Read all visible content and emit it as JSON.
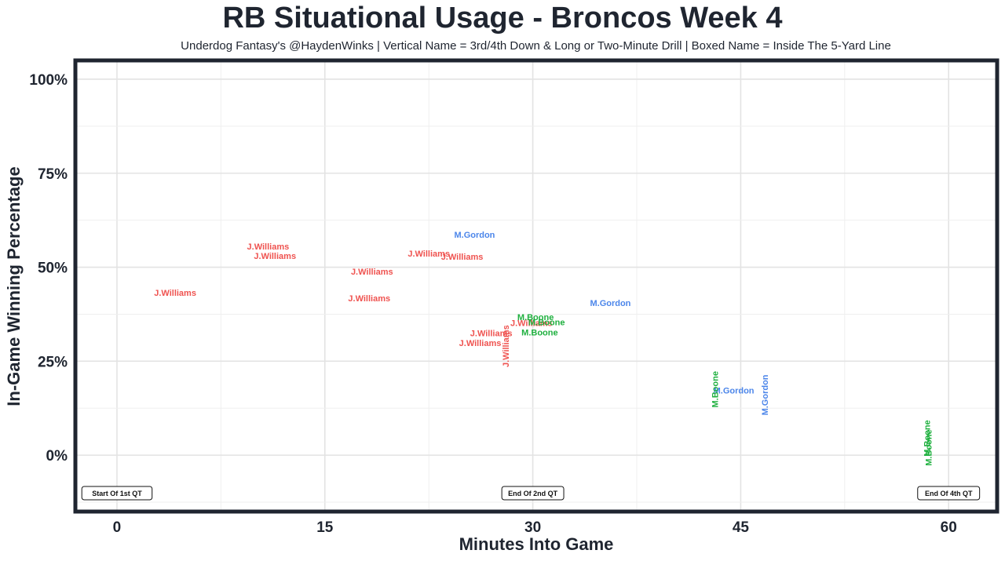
{
  "chart_data": {
    "type": "scatter",
    "title": "RB Situational Usage - Broncos Week 4",
    "subtitle": "Underdog Fantasy's @HaydenWinks | Vertical Name = 3rd/4th Down & Long or Two-Minute Drill | Boxed Name = Inside The 5-Yard Line",
    "xlabel": "Minutes Into Game",
    "ylabel": "In-Game Winning Percentage",
    "xlim": [
      -3,
      63.5
    ],
    "ylim": [
      -0.15,
      1.05
    ],
    "x_ticks": [
      0,
      15,
      30,
      45,
      60
    ],
    "x_tick_labels": [
      "0",
      "15",
      "30",
      "45",
      "60"
    ],
    "y_ticks": [
      0,
      0.25,
      0.5,
      0.75,
      1.0
    ],
    "y_tick_labels": [
      "0%",
      "25%",
      "50%",
      "75%",
      "100%"
    ],
    "grid": true,
    "colors": {
      "J.Williams": "#ef5350",
      "M.Gordon": "#4c86ea",
      "M.Boone": "#1fb03f"
    },
    "points": [
      {
        "label": "J.Williams",
        "x": 4.2,
        "y": 0.43,
        "vertical": false
      },
      {
        "label": "J.Williams",
        "x": 10.9,
        "y": 0.553,
        "vertical": false
      },
      {
        "label": "J.Williams",
        "x": 11.4,
        "y": 0.528,
        "vertical": false
      },
      {
        "label": "J.Williams",
        "x": 18.4,
        "y": 0.487,
        "vertical": false
      },
      {
        "label": "J.Williams",
        "x": 18.2,
        "y": 0.416,
        "vertical": false
      },
      {
        "label": "J.Williams",
        "x": 22.5,
        "y": 0.535,
        "vertical": false
      },
      {
        "label": "J.Williams",
        "x": 24.9,
        "y": 0.526,
        "vertical": false
      },
      {
        "label": "J.Williams",
        "x": 28.1,
        "y": 0.29,
        "vertical": true
      },
      {
        "label": "J.Williams",
        "x": 27.0,
        "y": 0.323,
        "vertical": false
      },
      {
        "label": "J.Williams",
        "x": 26.2,
        "y": 0.297,
        "vertical": false
      },
      {
        "label": "J.Williams",
        "x": 29.9,
        "y": 0.35,
        "vertical": false
      },
      {
        "label": "M.Gordon",
        "x": 25.8,
        "y": 0.585,
        "vertical": false
      },
      {
        "label": "M.Gordon",
        "x": 35.6,
        "y": 0.403,
        "vertical": false
      },
      {
        "label": "M.Gordon",
        "x": 44.5,
        "y": 0.17,
        "vertical": false
      },
      {
        "label": "M.Gordon",
        "x": 46.8,
        "y": 0.16,
        "vertical": true
      },
      {
        "label": "M.Boone",
        "x": 30.2,
        "y": 0.366,
        "vertical": false
      },
      {
        "label": "M.Boone",
        "x": 31.0,
        "y": 0.352,
        "vertical": false
      },
      {
        "label": "M.Boone",
        "x": 30.5,
        "y": 0.325,
        "vertical": false
      },
      {
        "label": "M.Boone",
        "x": 43.2,
        "y": 0.175,
        "vertical": true
      },
      {
        "label": "M.Boone",
        "x": 58.5,
        "y": 0.045,
        "vertical": true
      },
      {
        "label": "M.Boone",
        "x": 58.6,
        "y": 0.02,
        "vertical": true
      }
    ],
    "quarter_markers": [
      {
        "label": "Start Of 1st QT",
        "x": 0
      },
      {
        "label": "End Of 2nd QT",
        "x": 30
      },
      {
        "label": "End Of 4th QT",
        "x": 60
      }
    ]
  }
}
